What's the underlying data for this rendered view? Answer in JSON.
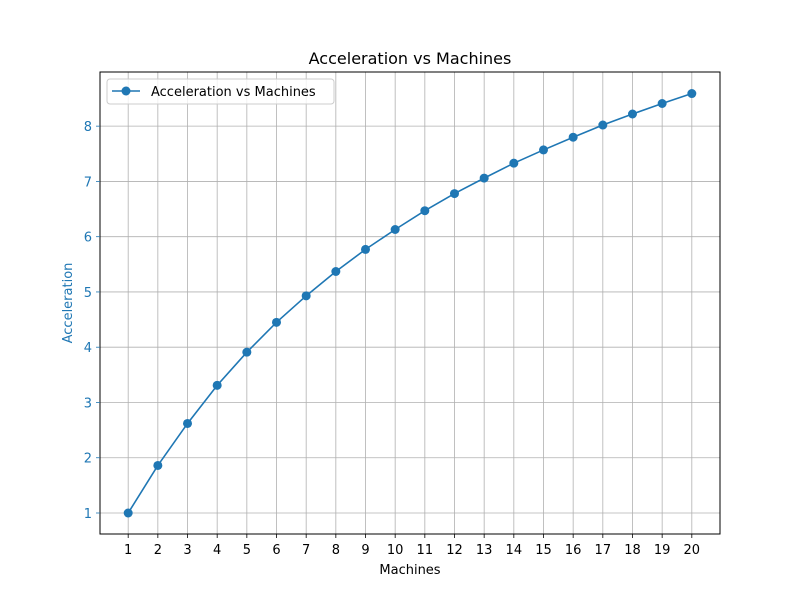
{
  "chart_data": {
    "type": "line",
    "title": "Acceleration vs Machines",
    "xlabel": "Machines",
    "ylabel": "Acceleration",
    "x": [
      1,
      2,
      3,
      4,
      5,
      6,
      7,
      8,
      9,
      10,
      11,
      12,
      13,
      14,
      15,
      16,
      17,
      18,
      19,
      20
    ],
    "series": [
      {
        "name": "Acceleration vs Machines",
        "values": [
          1.0,
          1.86,
          2.62,
          3.31,
          3.91,
          4.45,
          4.93,
          5.37,
          5.77,
          6.13,
          6.47,
          6.78,
          7.06,
          7.33,
          7.57,
          7.8,
          8.02,
          8.22,
          8.41,
          8.59
        ],
        "color": "#1f77b4",
        "marker": "circle"
      }
    ],
    "xticks": [
      "1",
      "2",
      "3",
      "4",
      "5",
      "6",
      "7",
      "8",
      "9",
      "10",
      "11",
      "12",
      "13",
      "14",
      "15",
      "16",
      "17",
      "18",
      "19",
      "20"
    ],
    "yticks": [
      "1",
      "2",
      "3",
      "4",
      "5",
      "6",
      "7",
      "8"
    ],
    "xlim": [
      0.05,
      20.95
    ],
    "ylim": [
      0.62,
      8.98
    ],
    "grid": true,
    "legend_position": "top-left",
    "ylabel_color": "#1f77b4",
    "ytick_color": "#1f77b4"
  }
}
